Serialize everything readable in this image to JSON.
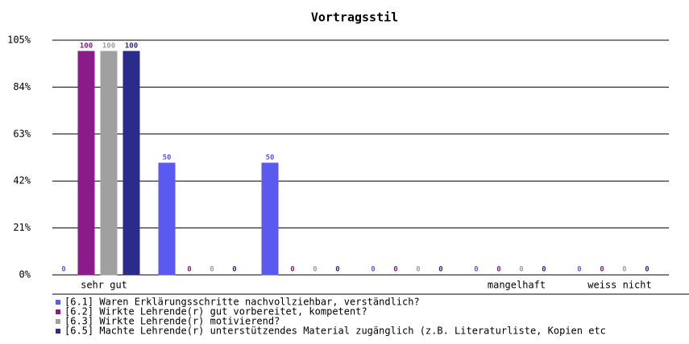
{
  "chart_data": {
    "type": "bar",
    "title": "Vortragsstil",
    "categories": [
      "sehr gut",
      null,
      null,
      null,
      "mangelhaft",
      "weiss nicht"
    ],
    "series": [
      {
        "name": "[6.1] Waren Erklärungsschritte nachvollziehbar, verständlich?",
        "color": "#5a5af0",
        "values": [
          0,
          50,
          50,
          0,
          0,
          0
        ]
      },
      {
        "name": "[6.2] Wirkte Lehrende(r) gut vorbereitet, kompetent?",
        "color": "#8b1a8b",
        "values": [
          100,
          0,
          0,
          0,
          0,
          0
        ]
      },
      {
        "name": "[6.3] Wirkte Lehrende(r) motivierend?",
        "color": "#a0a0a0",
        "values": [
          100,
          0,
          0,
          0,
          0,
          0
        ]
      },
      {
        "name": "[6.5] Machte Lehrende(r) unterstützendes Material zugänglich (z.B. Literaturliste, Kopien etc",
        "color": "#2b2b8b",
        "values": [
          100,
          0,
          0,
          0,
          0,
          0
        ]
      }
    ],
    "ylim": [
      0,
      105
    ],
    "yticks": [
      {
        "value": 0,
        "label": "0%"
      },
      {
        "value": 21,
        "label": "21%"
      },
      {
        "value": 42,
        "label": "42%"
      },
      {
        "value": 63,
        "label": "63%"
      },
      {
        "value": 84,
        "label": "84%"
      },
      {
        "value": 105,
        "label": "105%"
      }
    ],
    "grid": true
  }
}
